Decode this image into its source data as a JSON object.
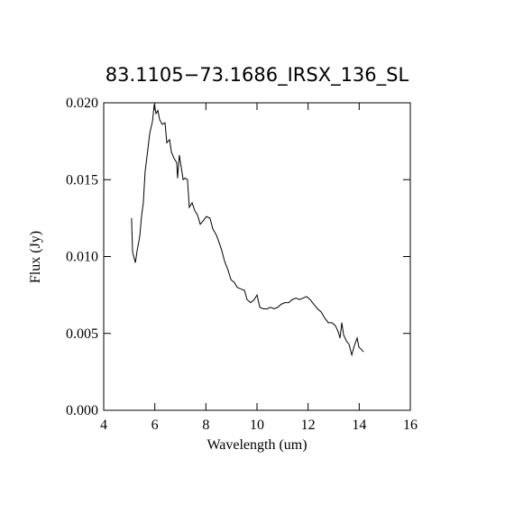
{
  "chart_data": {
    "type": "line",
    "title": "83.1105−73.1686_IRSX_136_SL",
    "xlabel": "Wavelength (um)",
    "ylabel": "Flux (Jy)",
    "xlim": [
      4,
      16
    ],
    "xticks": [
      4,
      6,
      8,
      10,
      12,
      14,
      16
    ],
    "ylim": [
      0,
      0.02
    ],
    "yticks": [
      {
        "value": 0,
        "label": "0.000"
      },
      0.005,
      {
        "value": 0.01,
        "label": "0.010"
      },
      0.015,
      {
        "value": 0.02,
        "label": "0.020"
      }
    ],
    "series": [
      {
        "color": "#000000",
        "x": [
          5.09,
          5.13,
          5.24,
          5.31,
          5.41,
          5.48,
          5.55,
          5.62,
          5.73,
          5.8,
          5.91,
          5.98,
          6.05,
          6.12,
          6.19,
          6.29,
          6.4,
          6.47,
          6.58,
          6.65,
          6.75,
          6.86,
          6.89,
          6.96,
          7.11,
          7.18,
          7.28,
          7.35,
          7.46,
          7.56,
          7.67,
          7.78,
          7.88,
          8.02,
          8.16,
          8.27,
          8.41,
          8.52,
          8.62,
          8.73,
          8.87,
          8.98,
          9.12,
          9.22,
          9.36,
          9.51,
          9.61,
          9.75,
          9.89,
          10.0,
          10.11,
          10.25,
          10.39,
          10.53,
          10.67,
          10.81,
          10.95,
          11.09,
          11.24,
          11.38,
          11.52,
          11.66,
          11.8,
          11.94,
          12.08,
          12.22,
          12.37,
          12.51,
          12.65,
          12.79,
          12.93,
          13.07,
          13.18,
          13.25,
          13.32,
          13.39,
          13.5,
          13.6,
          13.71,
          13.81,
          13.92,
          13.99,
          14.06,
          14.17
        ],
        "values": [
          0.0125,
          0.0103,
          0.0096,
          0.0104,
          0.0113,
          0.0126,
          0.0135,
          0.0155,
          0.017,
          0.018,
          0.0188,
          0.0199,
          0.0193,
          0.0195,
          0.0189,
          0.0186,
          0.0187,
          0.0174,
          0.0176,
          0.0168,
          0.0164,
          0.0161,
          0.0151,
          0.0166,
          0.015,
          0.0151,
          0.015,
          0.0132,
          0.0135,
          0.013,
          0.0127,
          0.0121,
          0.0123,
          0.0126,
          0.0125,
          0.0118,
          0.0114,
          0.0109,
          0.0104,
          0.0097,
          0.0091,
          0.0085,
          0.0083,
          0.008,
          0.0079,
          0.0078,
          0.0072,
          0.007,
          0.0072,
          0.0075,
          0.0067,
          0.0066,
          0.0066,
          0.0067,
          0.0066,
          0.0067,
          0.0069,
          0.007,
          0.007,
          0.0072,
          0.0073,
          0.0072,
          0.0073,
          0.0074,
          0.0072,
          0.0069,
          0.0066,
          0.0064,
          0.006,
          0.0057,
          0.0057,
          0.0055,
          0.0051,
          0.0047,
          0.0057,
          0.0049,
          0.0045,
          0.0043,
          0.0036,
          0.0042,
          0.0047,
          0.0041,
          0.004,
          0.0038
        ]
      }
    ]
  }
}
